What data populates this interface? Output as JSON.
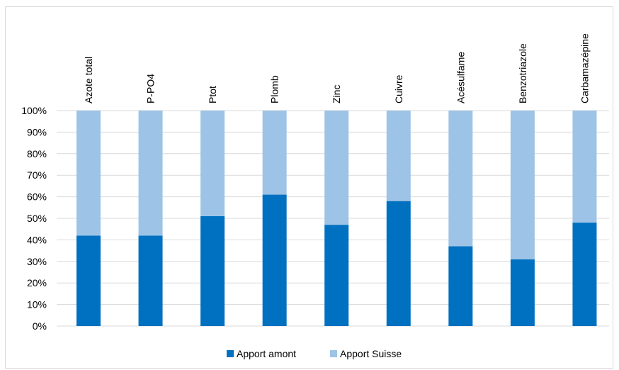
{
  "chart_data": {
    "type": "bar",
    "stacked": true,
    "percent": true,
    "categories": [
      "Azote total",
      "P-PO4",
      "Ptot",
      "Plomb",
      "Zinc",
      "Cuivre",
      "Acésulfame",
      "Benzotriazole",
      "Carbamazépine"
    ],
    "series": [
      {
        "name": "Apport amont",
        "color": "#0070c0",
        "values": [
          42,
          42,
          51,
          61,
          47,
          58,
          37,
          31,
          48
        ]
      },
      {
        "name": "Apport Suisse",
        "color": "#9dc3e6",
        "values": [
          58,
          58,
          49,
          39,
          53,
          42,
          63,
          69,
          52
        ]
      }
    ],
    "ylim": [
      0,
      100
    ],
    "yticks": [
      "0%",
      "10%",
      "20%",
      "30%",
      "40%",
      "50%",
      "60%",
      "70%",
      "80%",
      "90%",
      "100%"
    ],
    "grid": true,
    "legend_position": "bottom"
  }
}
